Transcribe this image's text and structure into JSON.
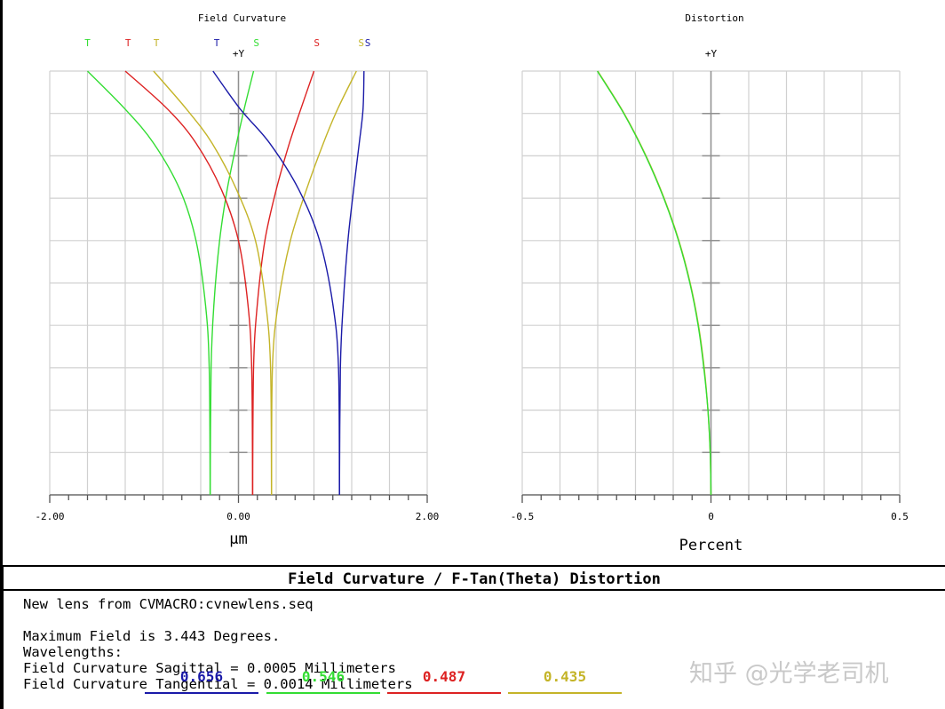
{
  "colors": {
    "blue": "#1a1aa8",
    "green": "#33dd33",
    "red": "#dd2222",
    "yellow": "#c4b428",
    "grid": "#d0d0d0"
  },
  "chart_data": [
    {
      "type": "line",
      "title": "Field Curvature",
      "y_axis_label": "+Y",
      "xlabel": "µm",
      "xlim": [
        -2.0,
        2.0
      ],
      "ylim": [
        0,
        1
      ],
      "x_tick_labels": [
        "-2.00",
        "0.00",
        "2.00"
      ],
      "grid": true,
      "legend_markers": [
        {
          "letter": "T",
          "color": "green",
          "x": -1.6
        },
        {
          "letter": "T",
          "color": "red",
          "x": -1.17
        },
        {
          "letter": "T",
          "color": "yellow",
          "x": -0.87
        },
        {
          "letter": "T",
          "color": "blue",
          "x": -0.23
        },
        {
          "letter": "S",
          "color": "green",
          "x": 0.19
        },
        {
          "letter": "S",
          "color": "red",
          "x": 0.83
        },
        {
          "letter": "S",
          "color": "yellow",
          "x": 1.3
        },
        {
          "letter": "S",
          "color": "blue",
          "x": 1.37
        }
      ],
      "series": [
        {
          "color": "green",
          "points": [
            [
              -0.3,
              0
            ],
            [
              -0.31,
              0.3
            ],
            [
              -0.35,
              0.45
            ],
            [
              -0.45,
              0.6
            ],
            [
              -0.62,
              0.72
            ],
            [
              -0.9,
              0.83
            ],
            [
              -1.2,
              0.91
            ],
            [
              -1.6,
              1.0
            ]
          ]
        },
        {
          "color": "green",
          "points": [
            [
              -0.3,
              0
            ],
            [
              -0.29,
              0.3
            ],
            [
              -0.26,
              0.45
            ],
            [
              -0.2,
              0.6
            ],
            [
              -0.12,
              0.72
            ],
            [
              -0.02,
              0.83
            ],
            [
              0.06,
              0.91
            ],
            [
              0.16,
              1.0
            ]
          ]
        },
        {
          "color": "red",
          "points": [
            [
              0.15,
              0
            ],
            [
              0.14,
              0.3
            ],
            [
              0.1,
              0.45
            ],
            [
              0.0,
              0.6
            ],
            [
              -0.18,
              0.72
            ],
            [
              -0.45,
              0.83
            ],
            [
              -0.75,
              0.91
            ],
            [
              -1.2,
              1.0
            ]
          ]
        },
        {
          "color": "red",
          "points": [
            [
              0.15,
              0
            ],
            [
              0.16,
              0.3
            ],
            [
              0.2,
              0.45
            ],
            [
              0.28,
              0.6
            ],
            [
              0.4,
              0.72
            ],
            [
              0.54,
              0.83
            ],
            [
              0.66,
              0.91
            ],
            [
              0.8,
              1.0
            ]
          ]
        },
        {
          "color": "yellow",
          "points": [
            [
              0.35,
              0
            ],
            [
              0.34,
              0.3
            ],
            [
              0.29,
              0.45
            ],
            [
              0.18,
              0.6
            ],
            [
              -0.02,
              0.72
            ],
            [
              -0.28,
              0.83
            ],
            [
              -0.55,
              0.91
            ],
            [
              -0.9,
              1.0
            ]
          ]
        },
        {
          "color": "yellow",
          "points": [
            [
              0.35,
              0
            ],
            [
              0.36,
              0.3
            ],
            [
              0.42,
              0.45
            ],
            [
              0.55,
              0.6
            ],
            [
              0.72,
              0.72
            ],
            [
              0.9,
              0.83
            ],
            [
              1.05,
              0.91
            ],
            [
              1.25,
              1.0
            ]
          ]
        },
        {
          "color": "blue",
          "points": [
            [
              1.07,
              0
            ],
            [
              1.06,
              0.3
            ],
            [
              1.0,
              0.45
            ],
            [
              0.86,
              0.6
            ],
            [
              0.64,
              0.72
            ],
            [
              0.33,
              0.83
            ],
            [
              0.02,
              0.91
            ],
            [
              -0.27,
              1.0
            ]
          ]
        },
        {
          "color": "blue",
          "points": [
            [
              1.07,
              0
            ],
            [
              1.08,
              0.3
            ],
            [
              1.11,
              0.45
            ],
            [
              1.16,
              0.6
            ],
            [
              1.22,
              0.72
            ],
            [
              1.28,
              0.83
            ],
            [
              1.32,
              0.91
            ],
            [
              1.33,
              1.0
            ]
          ]
        }
      ]
    },
    {
      "type": "line",
      "title": "Distortion",
      "y_axis_label": "+Y",
      "xlabel": "Percent",
      "xlim": [
        -0.5,
        0.5
      ],
      "ylim": [
        0,
        1
      ],
      "x_tick_labels": [
        "-0.5",
        "0",
        "0.5"
      ],
      "grid": true,
      "series": [
        {
          "color": "yellow",
          "points": [
            [
              0,
              0
            ],
            [
              -0.002,
              0.1
            ],
            [
              -0.008,
              0.2
            ],
            [
              -0.018,
              0.3
            ],
            [
              -0.033,
              0.4
            ],
            [
              -0.055,
              0.5
            ],
            [
              -0.085,
              0.6
            ],
            [
              -0.124,
              0.7
            ],
            [
              -0.172,
              0.8
            ],
            [
              -0.23,
              0.9
            ],
            [
              -0.3,
              1.0
            ]
          ]
        },
        {
          "color": "green",
          "points": [
            [
              0,
              0
            ],
            [
              -0.002,
              0.1
            ],
            [
              -0.008,
              0.2
            ],
            [
              -0.019,
              0.3
            ],
            [
              -0.034,
              0.4
            ],
            [
              -0.056,
              0.5
            ],
            [
              -0.086,
              0.6
            ],
            [
              -0.125,
              0.7
            ],
            [
              -0.173,
              0.8
            ],
            [
              -0.231,
              0.9
            ],
            [
              -0.301,
              1.0
            ]
          ]
        }
      ]
    }
  ],
  "info": {
    "title": "Field Curvature / F-Tan(Theta) Distortion",
    "line1": "New lens from CVMACRO:cvnewlens.seq",
    "line2": "Maximum Field is 3.443 Degrees.",
    "line3": "Wavelengths:",
    "line4": "Field Curvature Sagittal = 0.0005 Millimeters",
    "line5": "Field Curvature Tangential = 0.0014 Millimeters",
    "wavelengths": [
      {
        "label": "0.656",
        "color": "blue"
      },
      {
        "label": "0.546",
        "color": "green"
      },
      {
        "label": "0.487",
        "color": "red"
      },
      {
        "label": "0.435",
        "color": "yellow"
      }
    ]
  },
  "watermark": "知乎 @光学老司机"
}
